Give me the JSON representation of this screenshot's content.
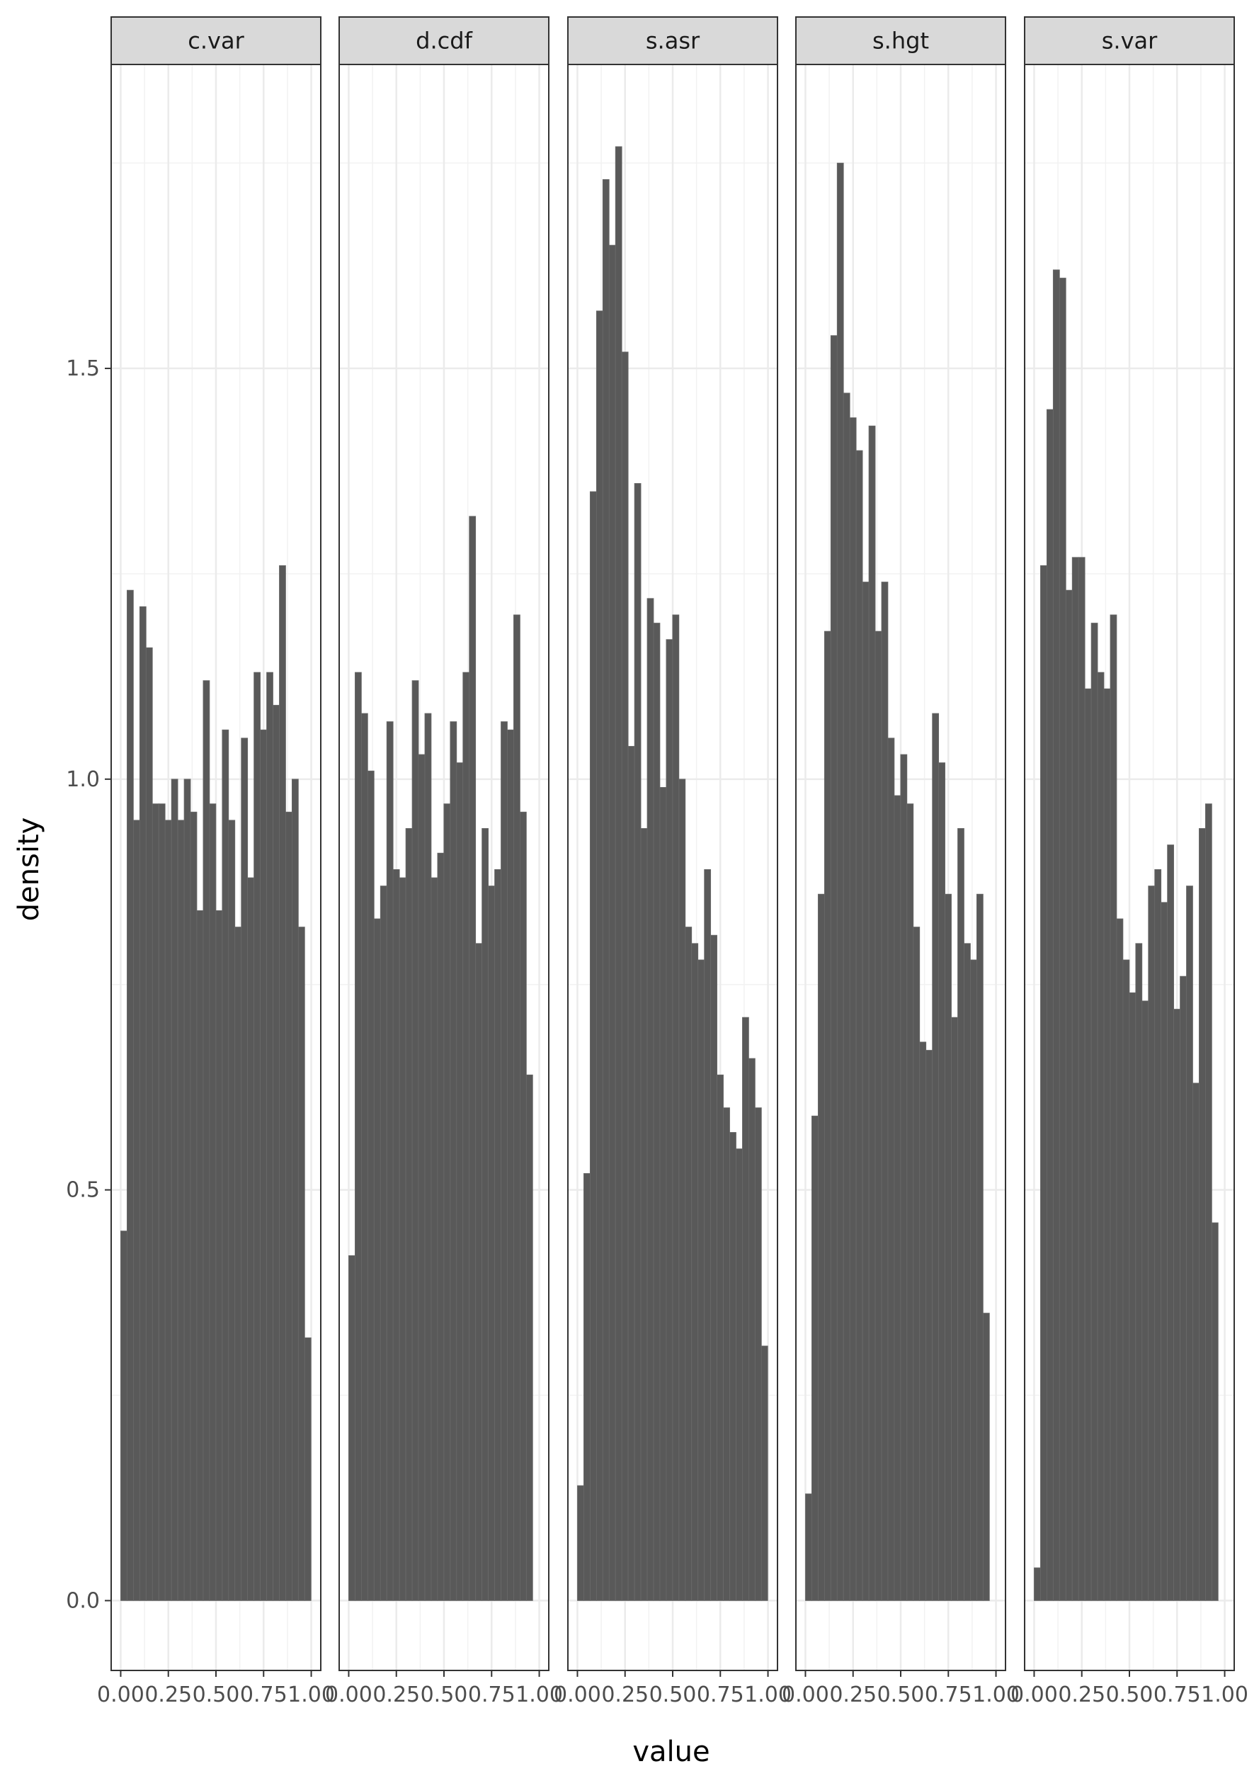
{
  "chart_data": {
    "type": "bar",
    "title": "",
    "xlabel": "value",
    "ylabel": "density",
    "ylim": [
      -0.085,
      1.87
    ],
    "xlim": [
      -0.05,
      1.05
    ],
    "x_ticks": [
      "0.00",
      "0.25",
      "0.50",
      "0.75",
      "1.00"
    ],
    "y_ticks": [
      "0.0",
      "0.5",
      "1.0",
      "1.5"
    ],
    "grid": true,
    "legend": "none",
    "bar_color": "#595959",
    "bin_start": 0.0,
    "bin_width": 0.0333,
    "facets": [
      {
        "name": "c.var",
        "values": [
          0.45,
          1.23,
          0.95,
          1.21,
          1.16,
          0.97,
          0.97,
          0.95,
          1.0,
          0.95,
          1.0,
          0.96,
          0.84,
          1.12,
          0.97,
          0.84,
          1.06,
          0.95,
          0.82,
          1.05,
          0.88,
          1.13,
          1.06,
          1.13,
          1.09,
          1.26,
          0.96,
          1.0,
          0.82,
          0.32
        ]
      },
      {
        "name": "d.cdf",
        "values": [
          0.42,
          1.13,
          1.08,
          1.01,
          0.83,
          0.87,
          1.07,
          0.89,
          0.88,
          0.94,
          1.12,
          1.03,
          1.08,
          0.88,
          0.91,
          0.97,
          1.07,
          1.02,
          1.13,
          1.32,
          0.8,
          0.94,
          0.87,
          0.89,
          1.07,
          1.06,
          1.2,
          0.96,
          0.64
        ]
      },
      {
        "name": "s.asr",
        "values": [
          0.14,
          0.52,
          1.35,
          1.57,
          1.73,
          1.65,
          1.77,
          1.52,
          1.04,
          1.36,
          0.94,
          1.22,
          1.19,
          0.99,
          1.17,
          1.2,
          1.0,
          0.82,
          0.8,
          0.78,
          0.89,
          0.81,
          0.64,
          0.6,
          0.57,
          0.55,
          0.71,
          0.66,
          0.6,
          0.31
        ]
      },
      {
        "name": "s.hgt",
        "values": [
          0.13,
          0.59,
          0.86,
          1.18,
          1.54,
          1.75,
          1.47,
          1.44,
          1.4,
          1.24,
          1.43,
          1.18,
          1.24,
          1.05,
          0.98,
          1.03,
          0.97,
          0.82,
          0.68,
          0.67,
          1.08,
          1.02,
          0.86,
          0.71,
          0.94,
          0.8,
          0.78,
          0.86,
          0.35
        ]
      },
      {
        "name": "s.var",
        "values": [
          0.04,
          1.26,
          1.45,
          1.62,
          1.61,
          1.23,
          1.27,
          1.27,
          1.11,
          1.19,
          1.13,
          1.11,
          1.2,
          0.83,
          0.78,
          0.74,
          0.8,
          0.73,
          0.87,
          0.89,
          0.85,
          0.92,
          0.72,
          0.76,
          0.87,
          0.63,
          0.94,
          0.97,
          0.46
        ]
      }
    ]
  }
}
